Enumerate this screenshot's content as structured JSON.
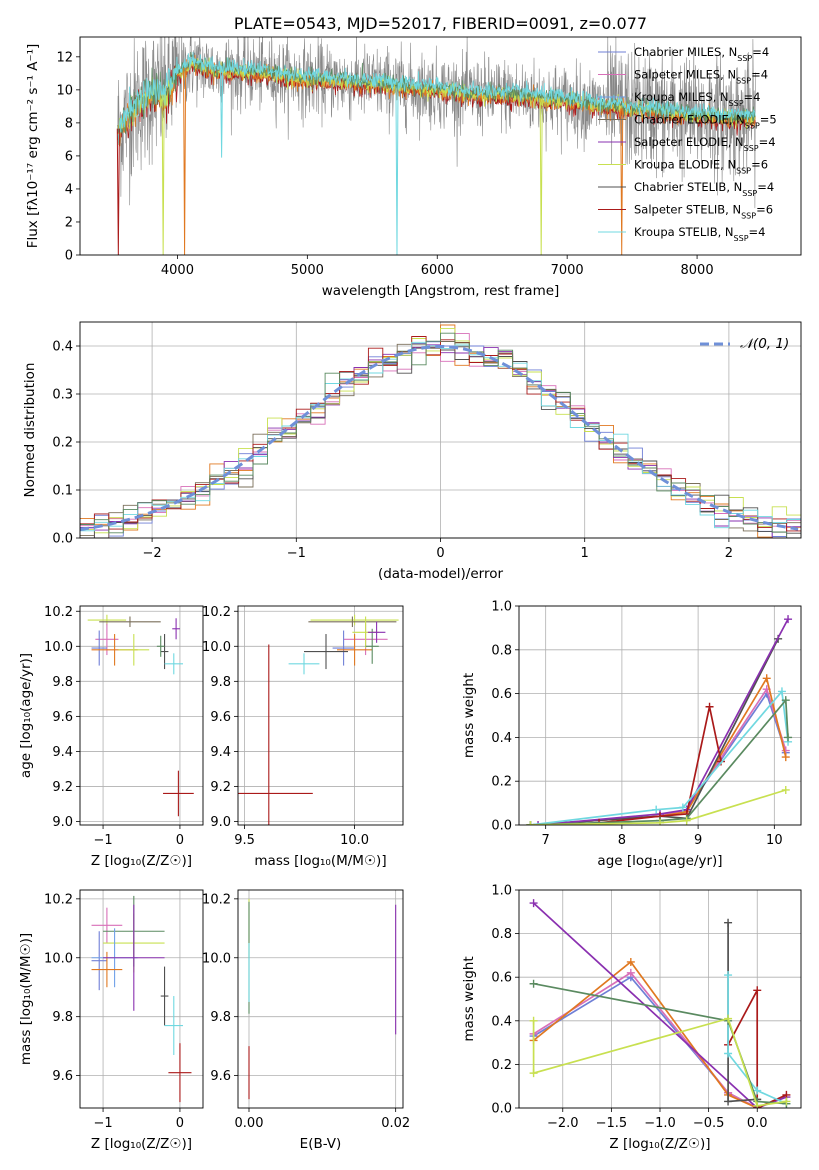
{
  "colors": {
    "chabrier_miles": "#6f7fd6",
    "salpeter_miles": "#d86fb8",
    "kroupa_miles": "#6fa0e8",
    "chabrier_elodie": "#7a6f5a",
    "salpeter_elodie": "#8a30b0",
    "kroupa_elodie": "#c8e050",
    "chabrier_stelib": "#505050",
    "salpeter_stelib": "#aa1a1a",
    "kroupa_stelib": "#70d8e0",
    "data": "#888888",
    "orange": "#e07820",
    "green": "#5a8a60",
    "gaussian": "#6f90d8"
  },
  "chart_data": [
    {
      "id": "spectrum",
      "type": "line",
      "title": "PLATE=0543, MJD=52017, FIBERID=0091, z=0.077",
      "xlabel": "wavelength [Angstrom, rest frame]",
      "ylabel": "Flux [fλ10⁻¹⁷ erg cm⁻² s⁻¹ A⁻¹]",
      "xlim": [
        3250,
        8800
      ],
      "ylim": [
        0,
        13.2
      ],
      "xticks": [
        4000,
        5000,
        6000,
        7000,
        8000
      ],
      "yticks": [
        0,
        2,
        4,
        6,
        8,
        10,
        12
      ],
      "grid": false,
      "legend_position": "right",
      "legend": [
        {
          "label": "Chabrier MILES, N",
          "sub": "SSP",
          "suffix": "=4",
          "color_key": "chabrier_miles"
        },
        {
          "label": "Salpeter MILES, N",
          "sub": "SSP",
          "suffix": "=4",
          "color_key": "salpeter_miles"
        },
        {
          "label": "Kroupa MILES, N",
          "sub": "SSP",
          "suffix": "=4",
          "color_key": "kroupa_miles"
        },
        {
          "label": "Chabrier ELODIE, N",
          "sub": "SSP",
          "suffix": "=5",
          "color_key": "chabrier_elodie"
        },
        {
          "label": "Salpeter ELODIE, N",
          "sub": "SSP",
          "suffix": "=4",
          "color_key": "salpeter_elodie"
        },
        {
          "label": "Kroupa ELODIE, N",
          "sub": "SSP",
          "suffix": "=6",
          "color_key": "kroupa_elodie"
        },
        {
          "label": "Chabrier STELIB, N",
          "sub": "SSP",
          "suffix": "=4",
          "color_key": "chabrier_stelib"
        },
        {
          "label": "Salpeter STELIB, N",
          "sub": "SSP",
          "suffix": "=6",
          "color_key": "salpeter_stelib"
        },
        {
          "label": "Kroupa STELIB, N",
          "sub": "SSP",
          "suffix": "=4",
          "color_key": "kroupa_stelib"
        }
      ],
      "continuum": [
        [
          3540,
          7.6
        ],
        [
          3600,
          8.2
        ],
        [
          3700,
          9.2
        ],
        [
          3800,
          9.8
        ],
        [
          3900,
          9.7
        ],
        [
          4000,
          11.0
        ],
        [
          4100,
          11.6
        ],
        [
          4300,
          11.2
        ],
        [
          4500,
          11.1
        ],
        [
          4700,
          11.0
        ],
        [
          4900,
          10.7
        ],
        [
          5100,
          10.6
        ],
        [
          5300,
          10.5
        ],
        [
          5500,
          10.4
        ],
        [
          5700,
          10.2
        ],
        [
          5900,
          10.1
        ],
        [
          6100,
          9.9
        ],
        [
          6300,
          9.7
        ],
        [
          6500,
          9.7
        ],
        [
          6700,
          9.6
        ],
        [
          6900,
          9.4
        ],
        [
          7100,
          9.2
        ],
        [
          7300,
          9.0
        ],
        [
          7500,
          8.8
        ],
        [
          7700,
          8.7
        ],
        [
          7900,
          8.5
        ],
        [
          8100,
          8.4
        ],
        [
          8300,
          8.3
        ],
        [
          8450,
          8.3
        ]
      ],
      "data_noise": 1.4,
      "model_dips": [
        {
          "x": 3545,
          "y": 0,
          "color_key": "salpeter_stelib"
        },
        {
          "x": 3890,
          "y": 0,
          "color_key": "kroupa_elodie"
        },
        {
          "x": 4055,
          "y": 0,
          "color_key": "orange"
        },
        {
          "x": 4340,
          "y": 5.9,
          "color_key": "kroupa_stelib"
        },
        {
          "x": 5690,
          "y": 0,
          "color_key": "kroupa_stelib"
        },
        {
          "x": 6800,
          "y": 0,
          "color_key": "kroupa_elodie"
        },
        {
          "x": 7420,
          "y": 0,
          "color_key": "orange"
        }
      ]
    },
    {
      "id": "residuals",
      "type": "histogram",
      "xlabel": "(data-model)/error",
      "ylabel": "Normed distribution",
      "xlim": [
        -2.5,
        2.5
      ],
      "ylim": [
        0,
        0.45
      ],
      "xticks": [
        -2,
        -1,
        0,
        1,
        2
      ],
      "yticks": [
        0.0,
        0.1,
        0.2,
        0.3,
        0.4
      ],
      "grid": true,
      "bin_width": 0.1,
      "legend_position": "top-right",
      "reference": {
        "label": "𝒩(0, 1)",
        "mean": 0,
        "sigma": 1,
        "color_key": "gaussian"
      }
    },
    {
      "id": "age_vs_Z",
      "type": "scatter_errorbar",
      "xlabel": "Z [log₁₀(Z/Z☉)]",
      "ylabel": "age  [log₁₀(age/yr)]",
      "xlim": [
        -1.3,
        0.3
      ],
      "ylim": [
        8.98,
        10.23
      ],
      "xticks": [
        -1,
        0
      ],
      "yticks": [
        9.0,
        9.2,
        9.4,
        9.6,
        9.8,
        10.0,
        10.2
      ],
      "grid": true,
      "points": [
        {
          "x": -0.95,
          "y": 10.15,
          "xerr": 0.25,
          "yerr": 0.03,
          "color_key": "kroupa_elodie"
        },
        {
          "x": -0.65,
          "y": 10.14,
          "xerr": 0.4,
          "yerr": 0.03,
          "color_key": "chabrier_elodie"
        },
        {
          "x": -0.95,
          "y": 10.04,
          "xerr": 0.15,
          "yerr": 0.09,
          "color_key": "salpeter_miles"
        },
        {
          "x": -1.05,
          "y": 9.99,
          "xerr": 0.1,
          "yerr": 0.1,
          "color_key": "chabrier_miles"
        },
        {
          "x": -0.85,
          "y": 9.98,
          "xerr": 0.3,
          "yerr": 0.09,
          "color_key": "orange"
        },
        {
          "x": -0.6,
          "y": 9.98,
          "xerr": 0.2,
          "yerr": 0.09,
          "color_key": "kroupa_elodie"
        },
        {
          "x": -0.2,
          "y": 9.97,
          "xerr": 0.05,
          "yerr": 0.1,
          "color_key": "chabrier_stelib"
        },
        {
          "x": -0.25,
          "y": 10.0,
          "xerr": 0.05,
          "yerr": 0.06,
          "color_key": "green"
        },
        {
          "x": -0.08,
          "y": 9.9,
          "xerr": 0.12,
          "yerr": 0.06,
          "color_key": "kroupa_stelib"
        },
        {
          "x": -0.05,
          "y": 10.1,
          "xerr": 0.05,
          "yerr": 0.06,
          "color_key": "salpeter_elodie"
        },
        {
          "x": -0.02,
          "y": 9.16,
          "xerr": 0.2,
          "yerr": 0.13,
          "color_key": "salpeter_stelib"
        }
      ]
    },
    {
      "id": "age_vs_mass",
      "type": "scatter_errorbar",
      "xlabel": "mass [log₁₀(M/M☉)]",
      "ylabel": "",
      "xlim": [
        9.47,
        10.22
      ],
      "ylim": [
        8.98,
        10.23
      ],
      "xticks": [
        9.5,
        10.0
      ],
      "yticks": [
        9.0,
        9.2,
        9.4,
        9.6,
        9.8,
        10.0,
        10.2
      ],
      "grid": true,
      "points": [
        {
          "x": 10.0,
          "y": 10.15,
          "xerr": 0.2,
          "yerr": 0.03,
          "color_key": "kroupa_elodie"
        },
        {
          "x": 9.99,
          "y": 10.14,
          "xerr": 0.2,
          "yerr": 0.03,
          "color_key": "chabrier_elodie"
        },
        {
          "x": 10.05,
          "y": 10.04,
          "xerr": 0.1,
          "yerr": 0.09,
          "color_key": "salpeter_miles"
        },
        {
          "x": 9.95,
          "y": 9.99,
          "xerr": 0.05,
          "yerr": 0.1,
          "color_key": "chabrier_miles"
        },
        {
          "x": 10.0,
          "y": 9.98,
          "xerr": 0.08,
          "yerr": 0.09,
          "color_key": "orange"
        },
        {
          "x": 10.05,
          "y": 10.08,
          "xerr": 0.06,
          "yerr": 0.09,
          "color_key": "kroupa_elodie"
        },
        {
          "x": 9.87,
          "y": 9.97,
          "xerr": 0.1,
          "yerr": 0.1,
          "color_key": "chabrier_stelib"
        },
        {
          "x": 10.08,
          "y": 10.0,
          "xerr": 0.03,
          "yerr": 0.1,
          "color_key": "green"
        },
        {
          "x": 9.77,
          "y": 9.9,
          "xerr": 0.07,
          "yerr": 0.06,
          "color_key": "kroupa_stelib"
        },
        {
          "x": 10.1,
          "y": 10.08,
          "xerr": 0.04,
          "yerr": 0.06,
          "color_key": "salpeter_elodie"
        },
        {
          "x": 9.61,
          "y": 9.16,
          "xerr": 0.2,
          "yerr": 0.85,
          "color_key": "salpeter_stelib"
        }
      ]
    },
    {
      "id": "weight_vs_age",
      "type": "line",
      "xlabel": "age  [log₁₀(age/yr)]",
      "ylabel": "mass weight",
      "xlim": [
        6.65,
        10.35
      ],
      "ylim": [
        0,
        1
      ],
      "xticks": [
        7,
        8,
        9,
        10
      ],
      "yticks": [
        0.0,
        0.2,
        0.4,
        0.6,
        0.8,
        1.0
      ],
      "grid": true,
      "series": [
        {
          "color_key": "chabrier_miles",
          "x": [
            6.8,
            8.5,
            8.85,
            9.9,
            10.15
          ],
          "y": [
            0.0,
            0.04,
            0.07,
            0.6,
            0.33
          ]
        },
        {
          "color_key": "salpeter_miles",
          "x": [
            6.8,
            8.5,
            8.85,
            9.9,
            10.15
          ],
          "y": [
            0.0,
            0.04,
            0.07,
            0.62,
            0.34
          ]
        },
        {
          "color_key": "orange",
          "x": [
            6.8,
            8.5,
            8.85,
            9.9,
            10.15
          ],
          "y": [
            0.0,
            0.04,
            0.06,
            0.67,
            0.31
          ]
        },
        {
          "color_key": "chabrier_stelib",
          "x": [
            6.8,
            8.5,
            8.85,
            10.05
          ],
          "y": [
            0.0,
            0.04,
            0.03,
            0.85
          ]
        },
        {
          "color_key": "salpeter_elodie",
          "x": [
            6.9,
            8.5,
            8.85,
            10.18
          ],
          "y": [
            0.0,
            0.05,
            0.07,
            0.94
          ]
        },
        {
          "color_key": "salpeter_stelib",
          "x": [
            7.7,
            8.5,
            8.85,
            9.15,
            9.3
          ],
          "y": [
            0.01,
            0.04,
            0.05,
            0.54,
            0.29
          ]
        },
        {
          "color_key": "kroupa_stelib",
          "x": [
            6.8,
            8.45,
            8.8,
            10.1,
            10.18
          ],
          "y": [
            0.0,
            0.07,
            0.08,
            0.61,
            0.38
          ]
        },
        {
          "color_key": "green",
          "x": [
            6.8,
            8.5,
            8.85,
            10.15,
            10.18
          ],
          "y": [
            0.0,
            0.02,
            0.03,
            0.57,
            0.4
          ]
        },
        {
          "color_key": "kroupa_elodie",
          "x": [
            6.8,
            8.5,
            8.85,
            10.15
          ],
          "y": [
            0.0,
            0.01,
            0.02,
            0.16
          ]
        }
      ]
    },
    {
      "id": "mass_vs_Z",
      "type": "scatter_errorbar",
      "xlabel": "Z [log₁₀(Z/Z☉)]",
      "ylabel": "mass [log₁₀(M/M☉)]",
      "xlim": [
        -1.3,
        0.3
      ],
      "ylim": [
        9.49,
        10.23
      ],
      "xticks": [
        -1,
        0
      ],
      "yticks": [
        9.6,
        9.8,
        10.0,
        10.2
      ],
      "grid": true,
      "points": [
        {
          "x": -0.95,
          "y": 10.11,
          "xerr": 0.2,
          "yerr": 0.06,
          "color_key": "salpeter_miles"
        },
        {
          "x": -0.6,
          "y": 10.05,
          "xerr": 0.4,
          "yerr": 0.1,
          "color_key": "kroupa_elodie"
        },
        {
          "x": -0.6,
          "y": 10.09,
          "xerr": 0.4,
          "yerr": 0.12,
          "color_key": "green"
        },
        {
          "x": -1.05,
          "y": 9.99,
          "xerr": 0.1,
          "yerr": 0.1,
          "color_key": "chabrier_miles"
        },
        {
          "x": -0.85,
          "y": 10.0,
          "xerr": 0.3,
          "yerr": 0.1,
          "color_key": "kroupa_miles"
        },
        {
          "x": -0.95,
          "y": 9.96,
          "xerr": 0.2,
          "yerr": 0.06,
          "color_key": "orange"
        },
        {
          "x": -0.6,
          "y": 10.0,
          "xerr": 0.4,
          "yerr": 0.18,
          "color_key": "salpeter_elodie"
        },
        {
          "x": -0.2,
          "y": 9.87,
          "xerr": 0.05,
          "yerr": 0.1,
          "color_key": "chabrier_stelib"
        },
        {
          "x": -0.08,
          "y": 9.77,
          "xerr": 0.12,
          "yerr": 0.1,
          "color_key": "kroupa_stelib"
        },
        {
          "x": 0.0,
          "y": 9.61,
          "xerr": 0.15,
          "yerr": 0.1,
          "color_key": "salpeter_stelib"
        }
      ]
    },
    {
      "id": "mass_vs_ebv",
      "type": "scatter_errorbar",
      "xlabel": "E(B-V)",
      "ylabel": "",
      "xlim": [
        -0.0015,
        0.021
      ],
      "ylim": [
        9.49,
        10.23
      ],
      "xticks": [
        0.0,
        0.02
      ],
      "yticks": [
        9.6,
        9.8,
        10.0,
        10.2
      ],
      "grid": true,
      "points": [
        {
          "x": 0.0,
          "y": 10.1,
          "xerr": 0,
          "yerr": 0.1,
          "color_key": "kroupa_elodie"
        },
        {
          "x": 0.0,
          "y": 10.0,
          "xerr": 0,
          "yerr": 0.19,
          "color_key": "green"
        },
        {
          "x": 0.0,
          "y": 9.95,
          "xerr": 0,
          "yerr": 0.1,
          "color_key": "kroupa_stelib"
        },
        {
          "x": 0.0,
          "y": 9.61,
          "xerr": 0,
          "yerr": 0.09,
          "color_key": "salpeter_stelib"
        },
        {
          "x": 0.02,
          "y": 9.96,
          "xerr": 0,
          "yerr": 0.22,
          "color_key": "salpeter_elodie"
        }
      ]
    },
    {
      "id": "weight_vs_Z",
      "type": "line",
      "xlabel": "Z [log₁₀(Z/Z☉)]",
      "ylabel": "mass weight",
      "xlim": [
        -2.45,
        0.45
      ],
      "ylim": [
        0,
        1
      ],
      "xticks": [
        -2.0,
        -1.5,
        -1.0,
        -0.5,
        0.0
      ],
      "yticks": [
        0.0,
        0.2,
        0.4,
        0.6,
        0.8,
        1.0
      ],
      "grid": true,
      "series": [
        {
          "color_key": "chabrier_miles",
          "x": [
            -2.3,
            -1.3,
            -0.3,
            0.0
          ],
          "y": [
            0.33,
            0.6,
            0.07,
            0.0
          ]
        },
        {
          "color_key": "salpeter_miles",
          "x": [
            -2.3,
            -1.3,
            -0.3,
            0.0
          ],
          "y": [
            0.34,
            0.62,
            0.07,
            0.0
          ]
        },
        {
          "color_key": "orange",
          "x": [
            -2.3,
            -1.3,
            -0.3,
            0.0
          ],
          "y": [
            0.31,
            0.67,
            0.06,
            0.0
          ]
        },
        {
          "color_key": "salpeter_elodie",
          "x": [
            -2.3,
            0.0,
            0.3
          ],
          "y": [
            0.94,
            0.0,
            0.05
          ]
        },
        {
          "color_key": "chabrier_stelib",
          "x": [
            -0.3,
            -0.3,
            0.0
          ],
          "y": [
            0.85,
            0.03,
            0.04
          ]
        },
        {
          "color_key": "salpeter_stelib",
          "x": [
            -0.3,
            0.0,
            0.0,
            0.3
          ],
          "y": [
            0.29,
            0.54,
            0.0,
            0.06
          ]
        },
        {
          "color_key": "kroupa_stelib",
          "x": [
            -0.3,
            -0.3,
            0.0,
            0.3
          ],
          "y": [
            0.61,
            0.25,
            0.08,
            0.02
          ]
        },
        {
          "color_key": "green",
          "x": [
            -2.3,
            -0.3,
            0.0,
            0.3
          ],
          "y": [
            0.57,
            0.4,
            0.03,
            0.02
          ]
        },
        {
          "color_key": "kroupa_elodie",
          "x": [
            -2.3,
            -2.3,
            -0.3,
            0.0,
            0.3
          ],
          "y": [
            0.4,
            0.16,
            0.41,
            0.01,
            0.03
          ]
        }
      ]
    }
  ]
}
